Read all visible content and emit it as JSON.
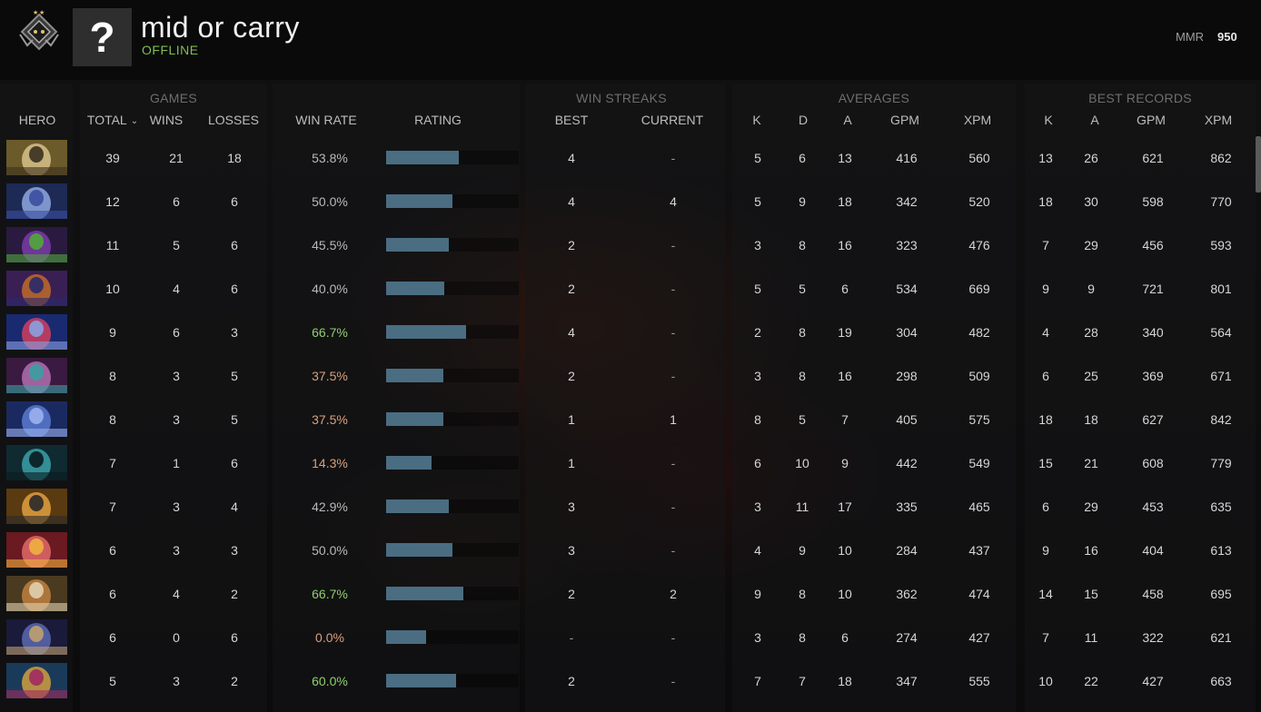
{
  "profile": {
    "name": "mid or carry",
    "status": "OFFLINE",
    "avatar_glyph": "?",
    "mmr_label": "MMR",
    "mmr_value": "950"
  },
  "groups": {
    "games": "GAMES",
    "win_streaks": "WIN STREAKS",
    "averages": "AVERAGES",
    "best_records": "BEST RECORDS"
  },
  "columns": {
    "hero": "HERO",
    "total": "TOTAL",
    "wins": "WINS",
    "losses": "LOSSES",
    "win_rate": "WIN RATE",
    "rating": "RATING",
    "best": "BEST",
    "current": "CURRENT",
    "avg_k": "K",
    "avg_d": "D",
    "avg_a": "A",
    "avg_gpm": "GPM",
    "avg_xpm": "XPM",
    "best_k": "K",
    "best_a": "A",
    "best_gpm": "GPM",
    "best_xpm": "XPM"
  },
  "colors": {
    "rating_bar": "#4a6d82",
    "good_winrate": "#8fcf6e",
    "bad_winrate": "#d9a07a",
    "status_online_text": "#7fbf52"
  },
  "rows": [
    {
      "hero_icon": "hero-portrait-1",
      "palette": [
        "#6b5a2a",
        "#d8c28a",
        "#3a3020"
      ],
      "total": "39",
      "wins": "21",
      "losses": "18",
      "win_rate": "53.8%",
      "rating": 0.55,
      "best": "4",
      "current": "-",
      "k": "5",
      "d": "6",
      "a": "13",
      "gpm": "416",
      "xpm": "560",
      "bk": "13",
      "ba": "26",
      "bgpm": "621",
      "bxpm": "862"
    },
    {
      "hero_icon": "hero-portrait-2",
      "palette": [
        "#1d2a55",
        "#8fa8e0",
        "#3b4ea0"
      ],
      "total": "12",
      "wins": "6",
      "losses": "6",
      "win_rate": "50.0%",
      "rating": 0.5,
      "best": "4",
      "current": "4",
      "k": "5",
      "d": "9",
      "a": "18",
      "gpm": "342",
      "xpm": "520",
      "bk": "18",
      "ba": "30",
      "bgpm": "598",
      "bxpm": "770"
    },
    {
      "hero_icon": "hero-portrait-3",
      "palette": [
        "#2a1a40",
        "#7a3ca8",
        "#4fa83a"
      ],
      "total": "11",
      "wins": "5",
      "losses": "6",
      "win_rate": "45.5%",
      "rating": 0.47,
      "best": "2",
      "current": "-",
      "k": "3",
      "d": "8",
      "a": "16",
      "gpm": "323",
      "xpm": "476",
      "bk": "7",
      "ba": "29",
      "bgpm": "456",
      "bxpm": "593"
    },
    {
      "hero_icon": "hero-portrait-4",
      "palette": [
        "#3a1f55",
        "#c06a2a",
        "#2a2a6a"
      ],
      "total": "10",
      "wins": "4",
      "losses": "6",
      "win_rate": "40.0%",
      "rating": 0.44,
      "best": "2",
      "current": "-",
      "k": "5",
      "d": "5",
      "a": "6",
      "gpm": "534",
      "xpm": "669",
      "bk": "9",
      "ba": "9",
      "bgpm": "721",
      "bxpm": "801"
    },
    {
      "hero_icon": "hero-portrait-5",
      "palette": [
        "#1a2a70",
        "#d04060",
        "#8aa0e0"
      ],
      "total": "9",
      "wins": "6",
      "losses": "3",
      "win_rate": "66.7%",
      "rating": 0.6,
      "best": "4",
      "current": "-",
      "k": "2",
      "d": "8",
      "a": "19",
      "gpm": "304",
      "xpm": "482",
      "bk": "4",
      "ba": "28",
      "bgpm": "340",
      "bxpm": "564"
    },
    {
      "hero_icon": "hero-portrait-6",
      "palette": [
        "#3a1a40",
        "#b070b0",
        "#3aa0a0"
      ],
      "total": "8",
      "wins": "3",
      "losses": "5",
      "win_rate": "37.5%",
      "rating": 0.43,
      "best": "2",
      "current": "-",
      "k": "3",
      "d": "8",
      "a": "16",
      "gpm": "298",
      "xpm": "509",
      "bk": "6",
      "ba": "25",
      "bgpm": "369",
      "bxpm": "671"
    },
    {
      "hero_icon": "hero-portrait-7",
      "palette": [
        "#1a2a60",
        "#5a7ad0",
        "#9ab0f0"
      ],
      "total": "8",
      "wins": "3",
      "losses": "5",
      "win_rate": "37.5%",
      "rating": 0.43,
      "best": "1",
      "current": "1",
      "k": "8",
      "d": "5",
      "a": "7",
      "gpm": "405",
      "xpm": "575",
      "bk": "18",
      "ba": "18",
      "bgpm": "627",
      "bxpm": "842"
    },
    {
      "hero_icon": "hero-portrait-8",
      "palette": [
        "#0f2a30",
        "#3aa0a8",
        "#0a1a20"
      ],
      "total": "7",
      "wins": "1",
      "losses": "6",
      "win_rate": "14.3%",
      "rating": 0.34,
      "best": "1",
      "current": "-",
      "k": "6",
      "d": "10",
      "a": "9",
      "gpm": "442",
      "xpm": "549",
      "bk": "15",
      "ba": "21",
      "bgpm": "608",
      "bxpm": "779"
    },
    {
      "hero_icon": "hero-portrait-9",
      "palette": [
        "#5a3a10",
        "#e0a040",
        "#2a2a2a"
      ],
      "total": "7",
      "wins": "3",
      "losses": "4",
      "win_rate": "42.9%",
      "rating": 0.47,
      "best": "3",
      "current": "-",
      "k": "3",
      "d": "11",
      "a": "17",
      "gpm": "335",
      "xpm": "465",
      "bk": "6",
      "ba": "29",
      "bgpm": "453",
      "bxpm": "635"
    },
    {
      "hero_icon": "hero-portrait-10",
      "palette": [
        "#6a1a20",
        "#e06a6a",
        "#f0b040"
      ],
      "total": "6",
      "wins": "3",
      "losses": "3",
      "win_rate": "50.0%",
      "rating": 0.5,
      "best": "3",
      "current": "-",
      "k": "4",
      "d": "9",
      "a": "10",
      "gpm": "284",
      "xpm": "437",
      "bk": "9",
      "ba": "16",
      "bgpm": "404",
      "bxpm": "613"
    },
    {
      "hero_icon": "hero-portrait-11",
      "palette": [
        "#4a3a20",
        "#c08040",
        "#e0d0b0"
      ],
      "total": "6",
      "wins": "4",
      "losses": "2",
      "win_rate": "66.7%",
      "rating": 0.58,
      "best": "2",
      "current": "2",
      "k": "9",
      "d": "8",
      "a": "10",
      "gpm": "362",
      "xpm": "474",
      "bk": "14",
      "ba": "15",
      "bgpm": "458",
      "bxpm": "695"
    },
    {
      "hero_icon": "hero-portrait-12",
      "palette": [
        "#1a1a3a",
        "#5a6ab0",
        "#c0a070"
      ],
      "total": "6",
      "wins": "0",
      "losses": "6",
      "win_rate": "0.0%",
      "rating": 0.3,
      "best": "-",
      "current": "-",
      "k": "3",
      "d": "8",
      "a": "6",
      "gpm": "274",
      "xpm": "427",
      "bk": "7",
      "ba": "11",
      "bgpm": "322",
      "bxpm": "621"
    },
    {
      "hero_icon": "hero-portrait-13",
      "palette": [
        "#1a3a5a",
        "#d0a040",
        "#a02a60"
      ],
      "total": "5",
      "wins": "3",
      "losses": "2",
      "win_rate": "60.0%",
      "rating": 0.53,
      "best": "2",
      "current": "-",
      "k": "7",
      "d": "7",
      "a": "18",
      "gpm": "347",
      "xpm": "555",
      "bk": "10",
      "ba": "22",
      "bgpm": "427",
      "bxpm": "663"
    }
  ]
}
